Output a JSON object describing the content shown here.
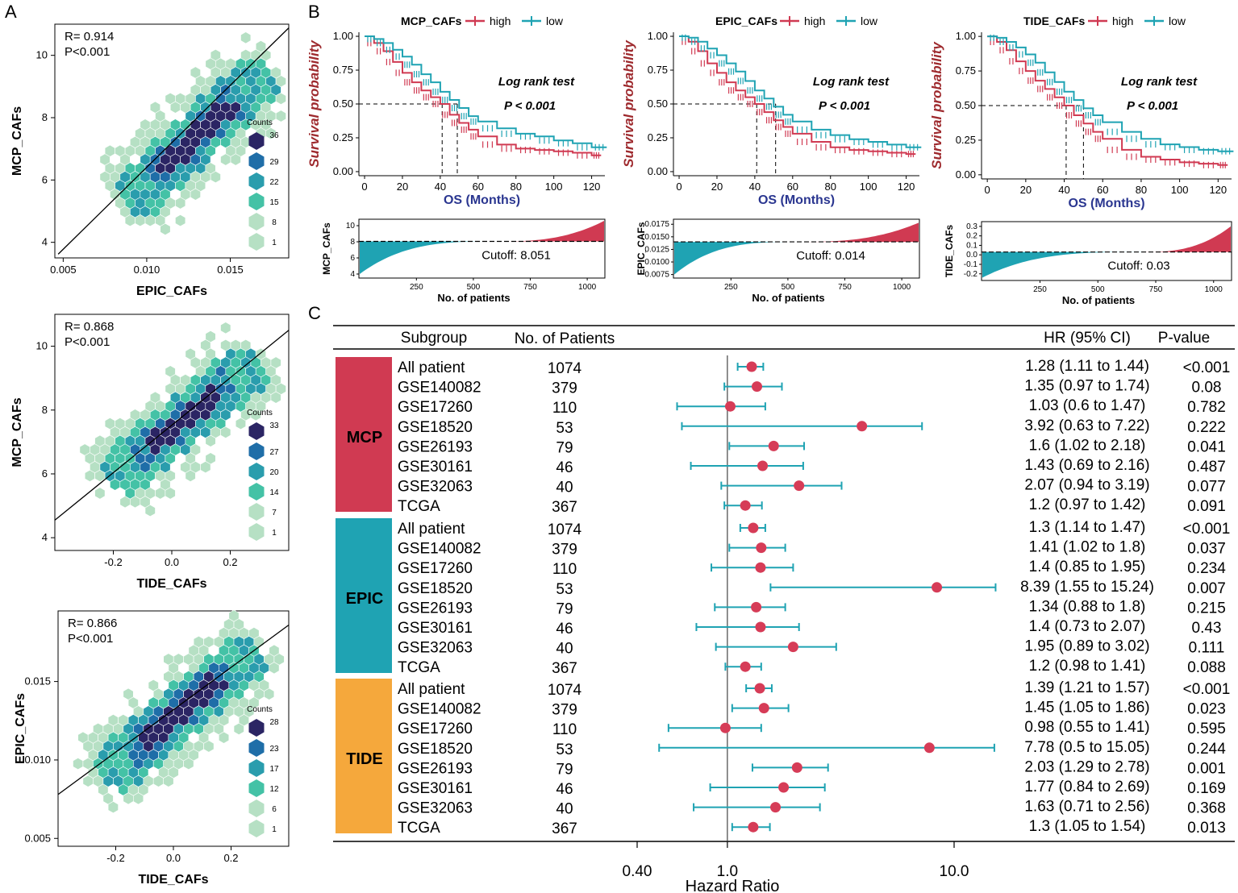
{
  "panel_labels": {
    "a": "A",
    "b": "B",
    "c": "C"
  },
  "colors": {
    "high": "#d03a52",
    "low": "#1fa3b3",
    "mcp": "#d03a52",
    "epic": "#1fa3b3",
    "tide": "#f5a83c",
    "dot": "#d63c57",
    "ci": "#1fa3b3",
    "hex_dark": "#2b2564",
    "hex_mid": "#1f6ea8",
    "hex_teal": "#2a9dad",
    "hex_green": "#44c2a6",
    "hex_light": "#b6e0c4"
  },
  "chart_data": [
    {
      "id": "A1",
      "type": "scatter",
      "subtype": "hexbin",
      "stat_r": "R= 0.914",
      "stat_p": "P<0.001",
      "xlabel": "EPIC_CAFs",
      "ylabel": "MCP_CAFs",
      "xlim": [
        0.0045,
        0.0185
      ],
      "ylim": [
        3.5,
        11.0
      ],
      "xticks": [
        0.005,
        0.01,
        0.015
      ],
      "xtick_labels": [
        "0.005",
        "0.010",
        "0.015"
      ],
      "yticks": [
        4,
        6,
        8,
        10
      ],
      "ytick_labels": [
        "4",
        "6",
        "8",
        "10"
      ],
      "fit": {
        "x": [
          0.0047,
          0.0185
        ],
        "y": [
          3.62,
          10.88
        ]
      },
      "legend_title": "Counts",
      "legend_values": [
        "36",
        "29",
        "22",
        "15",
        "8",
        "1"
      ],
      "cloud": {
        "x0": 0.0095,
        "y0": 5.6,
        "x1": 0.0165,
        "y1": 9.2,
        "spread": 0.9
      }
    },
    {
      "id": "A2",
      "type": "scatter",
      "subtype": "hexbin",
      "stat_r": "R= 0.868",
      "stat_p": "P<0.001",
      "xlabel": "TIDE_CAFs",
      "ylabel": "MCP_CAFs",
      "xlim": [
        -0.4,
        0.4
      ],
      "ylim": [
        3.6,
        11.0
      ],
      "xticks": [
        -0.2,
        0.0,
        0.2
      ],
      "xtick_labels": [
        "-0.2",
        "0.0",
        "0.2"
      ],
      "yticks": [
        4,
        6,
        8,
        10
      ],
      "ytick_labels": [
        "4",
        "6",
        "8",
        "10"
      ],
      "fit": {
        "x": [
          -0.4,
          0.4
        ],
        "y": [
          4.55,
          10.5
        ]
      },
      "legend_title": "Counts",
      "legend_values": [
        "33",
        "27",
        "20",
        "14",
        "7",
        "1"
      ],
      "cloud": {
        "x0": -0.17,
        "y0": 6.1,
        "x1": 0.25,
        "y1": 9.2,
        "spread": 1.1
      }
    },
    {
      "id": "A3",
      "type": "scatter",
      "subtype": "hexbin",
      "stat_r": "R= 0.866",
      "stat_p": "P<0.001",
      "xlabel": "TIDE_CAFs",
      "ylabel": "EPIC_CAFs",
      "xlim": [
        -0.4,
        0.4
      ],
      "ylim": [
        0.0045,
        0.0195
      ],
      "xticks": [
        -0.2,
        0.0,
        0.2
      ],
      "xtick_labels": [
        "-0.2",
        "0.0",
        "0.2"
      ],
      "yticks": [
        0.005,
        0.01,
        0.015
      ],
      "ytick_labels": [
        "0.005",
        "0.010",
        "0.015"
      ],
      "fit": {
        "x": [
          -0.4,
          0.4
        ],
        "y": [
          0.0078,
          0.0186
        ]
      },
      "legend_title": "Counts",
      "legend_values": [
        "28",
        "23",
        "17",
        "12",
        "6",
        "1"
      ],
      "cloud": {
        "x0": -0.2,
        "y0": 0.0095,
        "x1": 0.25,
        "y1": 0.0165,
        "spread": 0.0019
      }
    },
    {
      "id": "B1",
      "type": "line",
      "subtype": "kaplan-meier",
      "legend_title": "MCP_CAFs",
      "legend_high": "high",
      "legend_low": "low",
      "ylabel": "Survival probability",
      "xlabel": "OS (Months)",
      "xlim": [
        -3,
        127
      ],
      "ylim": [
        -0.03,
        1.03
      ],
      "xticks": [
        0,
        20,
        40,
        60,
        80,
        100,
        120
      ],
      "xtick_labels": [
        "0",
        "20",
        "40",
        "60",
        "80",
        "100",
        "120"
      ],
      "yticks": [
        0,
        0.25,
        0.5,
        0.75,
        1.0
      ],
      "ytick_labels": [
        "0.00",
        "0.25",
        "0.50",
        "0.75",
        "1.00"
      ],
      "test_label": "Log rank test",
      "p_label": "P < 0.001",
      "median_high": 41,
      "median_low": 49,
      "series": [
        {
          "name": "high",
          "x": [
            0,
            5,
            10,
            15,
            20,
            25,
            30,
            35,
            40,
            45,
            50,
            55,
            60,
            70,
            80,
            90,
            100,
            110,
            120,
            125
          ],
          "y": [
            1.0,
            0.95,
            0.89,
            0.81,
            0.73,
            0.66,
            0.6,
            0.55,
            0.5,
            0.42,
            0.36,
            0.31,
            0.26,
            0.2,
            0.17,
            0.16,
            0.15,
            0.14,
            0.12,
            0.12
          ]
        },
        {
          "name": "low",
          "x": [
            0,
            5,
            10,
            15,
            20,
            25,
            30,
            35,
            40,
            45,
            50,
            55,
            60,
            70,
            80,
            90,
            100,
            110,
            120,
            128
          ],
          "y": [
            1.0,
            0.98,
            0.95,
            0.9,
            0.85,
            0.79,
            0.72,
            0.66,
            0.59,
            0.53,
            0.47,
            0.41,
            0.37,
            0.32,
            0.28,
            0.26,
            0.23,
            0.21,
            0.18,
            0.18
          ]
        }
      ],
      "risk": {
        "ylabel": "MCP_CAFs",
        "xlabel": "No. of patients",
        "cutoff_label": "Cutoff: 8.051",
        "ylim": [
          3.5,
          10.8
        ],
        "yticks": [
          4,
          6,
          8,
          10
        ],
        "ytick_labels": [
          "4",
          "6",
          "8",
          "10"
        ],
        "xticks": [
          250,
          500,
          750,
          1000
        ],
        "xtick_labels": [
          "250",
          "500",
          "750",
          "1000"
        ],
        "cutoff": 8.051,
        "min": 4.0,
        "max": 10.6,
        "n": 1074,
        "split": 620
      }
    },
    {
      "id": "B2",
      "type": "line",
      "subtype": "kaplan-meier",
      "legend_title": "EPIC_CAFs",
      "legend_high": "high",
      "legend_low": "low",
      "ylabel": "Survival probability",
      "xlabel": "OS (Months)",
      "xlim": [
        -3,
        127
      ],
      "ylim": [
        -0.03,
        1.03
      ],
      "xticks": [
        0,
        20,
        40,
        60,
        80,
        100,
        120
      ],
      "xtick_labels": [
        "0",
        "20",
        "40",
        "60",
        "80",
        "100",
        "120"
      ],
      "yticks": [
        0,
        0.25,
        0.5,
        0.75,
        1.0
      ],
      "ytick_labels": [
        "0.00",
        "0.25",
        "0.50",
        "0.75",
        "1.00"
      ],
      "test_label": "Log rank test",
      "p_label": "P < 0.001",
      "median_high": 41,
      "median_low": 51,
      "series": [
        {
          "name": "high",
          "x": [
            0,
            5,
            10,
            15,
            20,
            25,
            30,
            35,
            40,
            45,
            50,
            55,
            60,
            70,
            80,
            90,
            100,
            110,
            120,
            125
          ],
          "y": [
            1.0,
            0.96,
            0.89,
            0.8,
            0.73,
            0.66,
            0.6,
            0.55,
            0.5,
            0.44,
            0.38,
            0.33,
            0.28,
            0.22,
            0.18,
            0.16,
            0.15,
            0.14,
            0.13,
            0.13
          ]
        },
        {
          "name": "low",
          "x": [
            0,
            5,
            10,
            15,
            20,
            25,
            30,
            35,
            40,
            45,
            50,
            55,
            60,
            70,
            80,
            90,
            100,
            110,
            120,
            128
          ],
          "y": [
            1.0,
            0.99,
            0.96,
            0.91,
            0.86,
            0.8,
            0.74,
            0.67,
            0.6,
            0.54,
            0.48,
            0.42,
            0.37,
            0.31,
            0.27,
            0.24,
            0.22,
            0.2,
            0.18,
            0.18
          ]
        }
      ],
      "risk": {
        "ylabel": "EPIC_CAFs",
        "xlabel": "No. of patients",
        "cutoff_label": "Cutoff: 0.014",
        "ylim": [
          0.0068,
          0.0185
        ],
        "yticks": [
          0.0075,
          0.01,
          0.0125,
          0.015,
          0.0175
        ],
        "ytick_labels": [
          "0.0075",
          "0.0100",
          "0.0125",
          "0.0150",
          "0.0175"
        ],
        "xticks": [
          250,
          500,
          750,
          1000
        ],
        "xtick_labels": [
          "250",
          "500",
          "750",
          "1000"
        ],
        "cutoff": 0.014,
        "min": 0.0075,
        "max": 0.0178,
        "n": 1074,
        "split": 560
      }
    },
    {
      "id": "B3",
      "type": "line",
      "subtype": "kaplan-meier",
      "legend_title": "TIDE_CAFs",
      "legend_high": "high",
      "legend_low": "low",
      "ylabel": "Survival probability",
      "xlabel": "OS (Months)",
      "xlim": [
        -3,
        127
      ],
      "ylim": [
        -0.03,
        1.03
      ],
      "xticks": [
        0,
        20,
        40,
        60,
        80,
        100,
        120
      ],
      "xtick_labels": [
        "0",
        "20",
        "40",
        "60",
        "80",
        "100",
        "120"
      ],
      "yticks": [
        0,
        0.25,
        0.5,
        0.75,
        1.0
      ],
      "ytick_labels": [
        "0.00",
        "0.25",
        "0.50",
        "0.75",
        "1.00"
      ],
      "test_label": "Log rank test",
      "p_label": "P < 0.001",
      "median_high": 41,
      "median_low": 50,
      "series": [
        {
          "name": "high",
          "x": [
            0,
            5,
            10,
            15,
            20,
            25,
            30,
            35,
            40,
            45,
            50,
            55,
            60,
            70,
            80,
            90,
            100,
            110,
            120,
            125
          ],
          "y": [
            1.0,
            0.96,
            0.9,
            0.82,
            0.75,
            0.68,
            0.62,
            0.56,
            0.5,
            0.43,
            0.37,
            0.31,
            0.26,
            0.18,
            0.13,
            0.11,
            0.09,
            0.08,
            0.07,
            0.07
          ]
        },
        {
          "name": "low",
          "x": [
            0,
            5,
            10,
            15,
            20,
            25,
            30,
            35,
            40,
            45,
            50,
            55,
            60,
            70,
            80,
            90,
            100,
            110,
            120,
            128
          ],
          "y": [
            1.0,
            0.99,
            0.96,
            0.92,
            0.87,
            0.81,
            0.74,
            0.67,
            0.6,
            0.54,
            0.48,
            0.43,
            0.38,
            0.31,
            0.26,
            0.22,
            0.2,
            0.18,
            0.17,
            0.17
          ]
        }
      ],
      "risk": {
        "ylabel": "TIDE_CAFs",
        "xlabel": "No. of patients",
        "cutoff_label": "Cutoff: 0.03",
        "ylim": [
          -0.27,
          0.35
        ],
        "yticks": [
          -0.2,
          -0.1,
          0.0,
          0.1,
          0.2,
          0.3
        ],
        "ytick_labels": [
          "-0.2",
          "-0.1",
          "0.0",
          "0.1",
          "0.2",
          "0.3"
        ],
        "xticks": [
          250,
          500,
          750,
          1000
        ],
        "xtick_labels": [
          "250",
          "500",
          "750",
          "1000"
        ],
        "cutoff": 0.03,
        "min": -0.24,
        "max": 0.3,
        "n": 1074,
        "split": 700
      }
    },
    {
      "id": "C",
      "type": "scatter",
      "subtype": "forest",
      "header": {
        "subgroup": "Subgroup",
        "patients": "No. of Patients",
        "hr": "HR (95% CI)",
        "p": "P-value"
      },
      "xlabel": "Hazard Ratio",
      "xscale": "log",
      "xlim": [
        0.2,
        16
      ],
      "xticks": [
        0.4,
        1.0,
        10.0
      ],
      "xtick_labels": [
        "0.40",
        "1.0",
        "10.0"
      ],
      "groups": [
        {
          "name": "MCP",
          "rows": [
            {
              "label": "All patient",
              "n": "1074",
              "hr": 1.28,
              "lo": 1.11,
              "hi": 1.44,
              "hr_text": "1.28 (1.11 to 1.44)",
              "p": "<0.001"
            },
            {
              "label": "GSE140082",
              "n": "379",
              "hr": 1.35,
              "lo": 0.97,
              "hi": 1.74,
              "hr_text": "1.35 (0.97 to 1.74)",
              "p": "0.08"
            },
            {
              "label": "GSE17260",
              "n": "110",
              "hr": 1.03,
              "lo": 0.6,
              "hi": 1.47,
              "hr_text": "1.03 (0.6 to 1.47)",
              "p": "0.782"
            },
            {
              "label": "GSE18520",
              "n": "53",
              "hr": 3.92,
              "lo": 0.63,
              "hi": 7.22,
              "hr_text": "3.92 (0.63 to 7.22)",
              "p": "0.222"
            },
            {
              "label": "GSE26193",
              "n": "79",
              "hr": 1.6,
              "lo": 1.02,
              "hi": 2.18,
              "hr_text": "1.6 (1.02 to 2.18)",
              "p": "0.041"
            },
            {
              "label": "GSE30161",
              "n": "46",
              "hr": 1.43,
              "lo": 0.69,
              "hi": 2.16,
              "hr_text": "1.43 (0.69 to 2.16)",
              "p": "0.487"
            },
            {
              "label": "GSE32063",
              "n": "40",
              "hr": 2.07,
              "lo": 0.94,
              "hi": 3.19,
              "hr_text": "2.07 (0.94 to 3.19)",
              "p": "0.077"
            },
            {
              "label": "TCGA",
              "n": "367",
              "hr": 1.2,
              "lo": 0.97,
              "hi": 1.42,
              "hr_text": "1.2 (0.97 to 1.42)",
              "p": "0.091"
            }
          ]
        },
        {
          "name": "EPIC",
          "rows": [
            {
              "label": "All patient",
              "n": "1074",
              "hr": 1.3,
              "lo": 1.14,
              "hi": 1.47,
              "hr_text": "1.3 (1.14 to 1.47)",
              "p": "<0.001"
            },
            {
              "label": "GSE140082",
              "n": "379",
              "hr": 1.41,
              "lo": 1.02,
              "hi": 1.8,
              "hr_text": "1.41 (1.02 to 1.8)",
              "p": "0.037"
            },
            {
              "label": "GSE17260",
              "n": "110",
              "hr": 1.4,
              "lo": 0.85,
              "hi": 1.95,
              "hr_text": "1.4 (0.85 to 1.95)",
              "p": "0.234"
            },
            {
              "label": "GSE18520",
              "n": "53",
              "hr": 8.39,
              "lo": 1.55,
              "hi": 15.24,
              "hr_text": "8.39 (1.55 to 15.24)",
              "p": "0.007"
            },
            {
              "label": "GSE26193",
              "n": "79",
              "hr": 1.34,
              "lo": 0.88,
              "hi": 1.8,
              "hr_text": "1.34 (0.88 to 1.8)",
              "p": "0.215"
            },
            {
              "label": "GSE30161",
              "n": "46",
              "hr": 1.4,
              "lo": 0.73,
              "hi": 2.07,
              "hr_text": "1.4 (0.73 to 2.07)",
              "p": "0.43"
            },
            {
              "label": "GSE32063",
              "n": "40",
              "hr": 1.95,
              "lo": 0.89,
              "hi": 3.02,
              "hr_text": "1.95 (0.89 to 3.02)",
              "p": "0.111"
            },
            {
              "label": "TCGA",
              "n": "367",
              "hr": 1.2,
              "lo": 0.98,
              "hi": 1.41,
              "hr_text": "1.2 (0.98 to 1.41)",
              "p": "0.088"
            }
          ]
        },
        {
          "name": "TIDE",
          "rows": [
            {
              "label": "All patient",
              "n": "1074",
              "hr": 1.39,
              "lo": 1.21,
              "hi": 1.57,
              "hr_text": "1.39 (1.21 to 1.57)",
              "p": "<0.001"
            },
            {
              "label": "GSE140082",
              "n": "379",
              "hr": 1.45,
              "lo": 1.05,
              "hi": 1.86,
              "hr_text": "1.45 (1.05 to 1.86)",
              "p": "0.023"
            },
            {
              "label": "GSE17260",
              "n": "110",
              "hr": 0.98,
              "lo": 0.55,
              "hi": 1.41,
              "hr_text": "0.98 (0.55 to 1.41)",
              "p": "0.595"
            },
            {
              "label": "GSE18520",
              "n": "53",
              "hr": 7.78,
              "lo": 0.5,
              "hi": 15.05,
              "hr_text": "7.78 (0.5 to 15.05)",
              "p": "0.244"
            },
            {
              "label": "GSE26193",
              "n": "79",
              "hr": 2.03,
              "lo": 1.29,
              "hi": 2.78,
              "hr_text": "2.03 (1.29 to 2.78)",
              "p": "0.001"
            },
            {
              "label": "GSE30161",
              "n": "46",
              "hr": 1.77,
              "lo": 0.84,
              "hi": 2.69,
              "hr_text": "1.77 (0.84 to 2.69)",
              "p": "0.169"
            },
            {
              "label": "GSE32063",
              "n": "40",
              "hr": 1.63,
              "lo": 0.71,
              "hi": 2.56,
              "hr_text": "1.63 (0.71 to 2.56)",
              "p": "0.368"
            },
            {
              "label": "TCGA",
              "n": "367",
              "hr": 1.3,
              "lo": 1.05,
              "hi": 1.54,
              "hr_text": "1.3 (1.05 to 1.54)",
              "p": "0.013"
            }
          ]
        }
      ]
    }
  ]
}
